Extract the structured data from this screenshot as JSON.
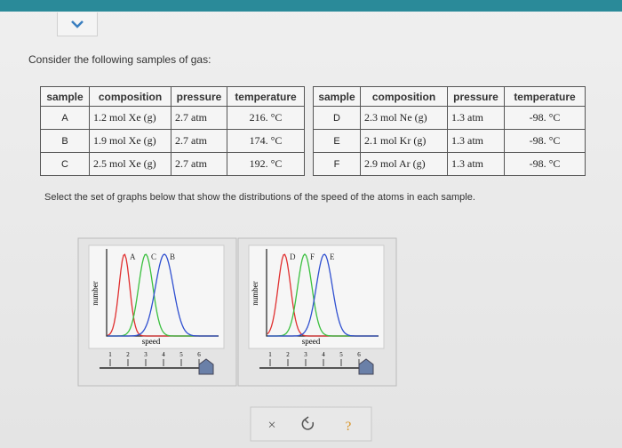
{
  "prompt": "Consider the following samples of gas:",
  "tables": [
    {
      "headers": [
        "sample",
        "composition",
        "pressure",
        "temperature"
      ],
      "rows": [
        [
          "A",
          "1.2 mol Xe (g)",
          "2.7 atm",
          "216. °C"
        ],
        [
          "B",
          "1.9 mol Xe (g)",
          "2.7 atm",
          "174. °C"
        ],
        [
          "C",
          "2.5 mol Xe (g)",
          "2.7 atm",
          "192. °C"
        ]
      ]
    },
    {
      "headers": [
        "sample",
        "composition",
        "pressure",
        "temperature"
      ],
      "rows": [
        [
          "D",
          "2.3 mol Ne (g)",
          "1.3 atm",
          "-98. °C"
        ],
        [
          "E",
          "2.1 mol Kr (g)",
          "1.3 atm",
          "-98. °C"
        ],
        [
          "F",
          "2.9 mol Ar (g)",
          "1.3 atm",
          "-98. °C"
        ]
      ]
    }
  ],
  "instruction": "Select the set of graphs below that show the distributions of the speed of the atoms in each sample.",
  "graphs": [
    {
      "curve_labels": [
        "A",
        "C",
        "B"
      ],
      "y_label": "number",
      "x_label": "speed",
      "slider_ticks": [
        "1",
        "2",
        "3",
        "4",
        "5",
        "6"
      ]
    },
    {
      "curve_labels": [
        "D",
        "F",
        "E"
      ],
      "y_label": "number",
      "x_label": "speed",
      "slider_ticks": [
        "1",
        "2",
        "3",
        "4",
        "5",
        "6"
      ]
    }
  ],
  "buttons": [
    "×",
    "?"
  ]
}
